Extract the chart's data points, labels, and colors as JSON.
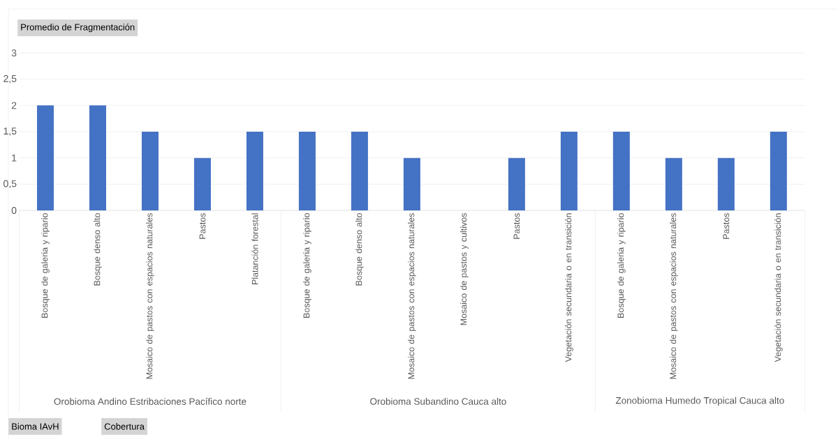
{
  "chart_data": {
    "type": "bar",
    "title": "Promedio de Fragmentación",
    "categories": [
      "Bosque de galeria y ripario",
      "Bosque denso alto",
      "Mosaico de pastos con espacios naturales",
      "Pastos",
      "Platanción forestal",
      "Bosque de galeria y ripario",
      "Bosque denso alto",
      "Mosaico de pastos con espacios naturales",
      "Mosaico de pastos y cultivos",
      "Pastos",
      "Vegetación secundaria o en transición",
      "Bosque de galeria y ripario",
      "Mosaico de pastos con espacios naturales",
      "Pastos",
      "Vegetación secundaria o en transición"
    ],
    "values": [
      2,
      2,
      1.5,
      1,
      1.5,
      1.5,
      1.5,
      1,
      0,
      1,
      1.5,
      1.5,
      1,
      1,
      1.5
    ],
    "color": "#4472c4",
    "ylim": [
      0,
      3
    ],
    "yticks": [
      0,
      {
        "value": 0.5,
        "label": "0,5"
      },
      1,
      {
        "value": 1.5,
        "label": "1,5"
      },
      2,
      {
        "value": 2.5,
        "label": "2,5"
      },
      3
    ],
    "grid": "y",
    "annotations": [
      "Orobioma Andino Estribaciones Pacífico norte",
      "Orobioma Subandino Cauca alto",
      "Zonobioma Humedo Tropical Cauca alto",
      "Bioma IAvH",
      "Cobertura"
    ]
  }
}
